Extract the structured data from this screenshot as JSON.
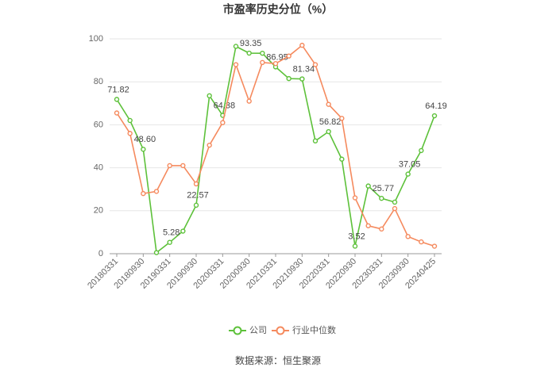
{
  "chart_data": {
    "type": "line",
    "title": "市盈率历史分位（%）",
    "source": "数据来源：恒生聚源",
    "categories": [
      "20180331",
      null,
      "20180930",
      null,
      "20190331",
      null,
      "20190930",
      null,
      "20200331",
      null,
      "20200930",
      null,
      "20210331",
      null,
      "20210930",
      null,
      "20220331",
      null,
      "20220930",
      null,
      "20230331",
      null,
      "20230930",
      null,
      "20240425"
    ],
    "series": [
      {
        "name": "公司",
        "color": "#5dc13a",
        "values": [
          71.82,
          62,
          48.6,
          0.5,
          5.28,
          10.5,
          22.57,
          73.5,
          64.38,
          96.5,
          93.35,
          93.3,
          86.95,
          81.5,
          81.34,
          52.5,
          56.82,
          44,
          3.52,
          31.5,
          25.77,
          24,
          37.05,
          48,
          64.19
        ],
        "value_labels": [
          "71.82",
          null,
          "48.60",
          null,
          "5.28",
          null,
          "22.57",
          null,
          "64.38",
          null,
          "93.35",
          null,
          "86.95",
          null,
          "81.34",
          null,
          "56.82",
          null,
          "3.52",
          null,
          "25.77",
          null,
          "37.05",
          null,
          "64.19"
        ]
      },
      {
        "name": "行业中位数",
        "color": "#f58a5e",
        "values": [
          65.5,
          56,
          28,
          29,
          41,
          41,
          32.5,
          50.5,
          61,
          88,
          71,
          89,
          88.5,
          92,
          97,
          88,
          69.5,
          63,
          26,
          13,
          11.5,
          21,
          8,
          5.5,
          3.5
        ]
      }
    ],
    "ylim": [
      0,
      100
    ],
    "yticks": [
      0,
      20,
      40,
      60,
      80,
      100
    ],
    "grid": true
  }
}
